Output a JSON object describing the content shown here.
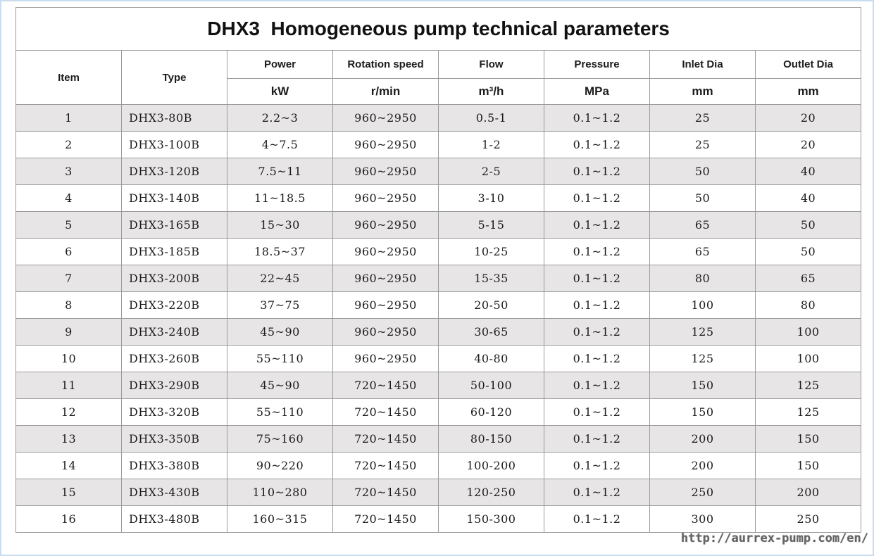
{
  "title": "DHX3  Homogeneous pump technical parameters",
  "watermark": "http://aurrex-pump.com/en/",
  "colors": {
    "row_stripe": "#e7e5e5",
    "cell_border": "#9b9b9b",
    "outer_border": "#8f8f8f",
    "page_frame_blue": "#c9ddee",
    "text": "#1c1c1c",
    "watermark_gray": "#4f4f4f"
  },
  "table": {
    "columns": [
      {
        "key": "item",
        "label": "Item",
        "unit": ""
      },
      {
        "key": "type",
        "label": "Type",
        "unit": ""
      },
      {
        "key": "power",
        "label": "Power",
        "unit": "kW"
      },
      {
        "key": "rotation_speed",
        "label": "Rotation speed",
        "unit": "r/min"
      },
      {
        "key": "flow",
        "label": "Flow",
        "unit": "m³/h"
      },
      {
        "key": "pressure",
        "label": "Pressure",
        "unit": "MPa"
      },
      {
        "key": "inlet_dia",
        "label": "Inlet Dia",
        "unit": "mm"
      },
      {
        "key": "outlet_dia",
        "label": "Outlet Dia",
        "unit": "mm"
      }
    ],
    "rows": [
      [
        "1",
        "DHX3-80B",
        "2.2~3",
        "960~2950",
        "0.5-1",
        "0.1~1.2",
        "25",
        "20"
      ],
      [
        "2",
        "DHX3-100B",
        "4~7.5",
        "960~2950",
        "1-2",
        "0.1~1.2",
        "25",
        "20"
      ],
      [
        "3",
        "DHX3-120B",
        "7.5~11",
        "960~2950",
        "2-5",
        "0.1~1.2",
        "50",
        "40"
      ],
      [
        "4",
        "DHX3-140B",
        "11~18.5",
        "960~2950",
        "3-10",
        "0.1~1.2",
        "50",
        "40"
      ],
      [
        "5",
        "DHX3-165B",
        "15~30",
        "960~2950",
        "5-15",
        "0.1~1.2",
        "65",
        "50"
      ],
      [
        "6",
        "DHX3-185B",
        "18.5~37",
        "960~2950",
        "10-25",
        "0.1~1.2",
        "65",
        "50"
      ],
      [
        "7",
        "DHX3-200B",
        "22~45",
        "960~2950",
        "15-35",
        "0.1~1.2",
        "80",
        "65"
      ],
      [
        "8",
        "DHX3-220B",
        "37~75",
        "960~2950",
        "20-50",
        "0.1~1.2",
        "100",
        "80"
      ],
      [
        "9",
        "DHX3-240B",
        "45~90",
        "960~2950",
        "30-65",
        "0.1~1.2",
        "125",
        "100"
      ],
      [
        "10",
        "DHX3-260B",
        "55~110",
        "960~2950",
        "40-80",
        "0.1~1.2",
        "125",
        "100"
      ],
      [
        "11",
        "DHX3-290B",
        "45~90",
        "720~1450",
        "50-100",
        "0.1~1.2",
        "150",
        "125"
      ],
      [
        "12",
        "DHX3-320B",
        "55~110",
        "720~1450",
        "60-120",
        "0.1~1.2",
        "150",
        "125"
      ],
      [
        "13",
        "DHX3-350B",
        "75~160",
        "720~1450",
        "80-150",
        "0.1~1.2",
        "200",
        "150"
      ],
      [
        "14",
        "DHX3-380B",
        "90~220",
        "720~1450",
        "100-200",
        "0.1~1.2",
        "200",
        "150"
      ],
      [
        "15",
        "DHX3-430B",
        "110~280",
        "720~1450",
        "120-250",
        "0.1~1.2",
        "250",
        "200"
      ],
      [
        "16",
        "DHX3-480B",
        "160~315",
        "720~1450",
        "150-300",
        "0.1~1.2",
        "300",
        "250"
      ]
    ]
  }
}
